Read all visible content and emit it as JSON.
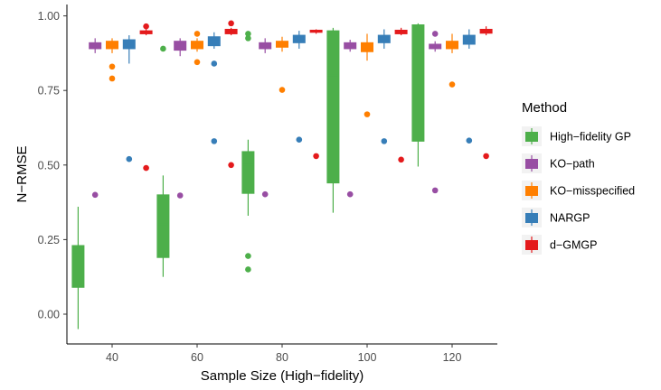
{
  "chart_data": {
    "type": "boxplot",
    "xlabel": "Sample Size (High−fidelity)",
    "ylabel": "N−RMSE",
    "ylim": [
      -0.1,
      1.02
    ],
    "yticks": [
      0,
      0.25,
      0.5,
      0.75,
      1
    ],
    "ytick_labels": [
      "0.00",
      "0.25",
      "0.50",
      "0.75",
      "1.00"
    ],
    "categories": [
      "40",
      "60",
      "80",
      "100",
      "120"
    ],
    "grid": false,
    "legend": {
      "title": "Method",
      "placement": "right"
    },
    "series": [
      {
        "name": "High−fidelity GP",
        "color": "#4DAF4A",
        "boxes": [
          {
            "category": "40",
            "min": -0.05,
            "q1": 0.09,
            "median": 0.2,
            "q3": 0.23,
            "max": 0.36,
            "outliers": []
          },
          {
            "category": "60",
            "min": 0.125,
            "q1": 0.19,
            "median": 0.3,
            "q3": 0.4,
            "max": 0.465,
            "outliers": [
              0.89
            ]
          },
          {
            "category": "80",
            "min": 0.33,
            "q1": 0.405,
            "median": 0.5,
            "q3": 0.545,
            "max": 0.585,
            "outliers": [
              0.195,
              0.15,
              0.925,
              0.94
            ]
          },
          {
            "category": "100",
            "min": 0.34,
            "q1": 0.44,
            "median": 0.8,
            "q3": 0.95,
            "max": 0.96,
            "outliers": []
          },
          {
            "category": "120",
            "min": 0.495,
            "q1": 0.58,
            "median": 0.88,
            "q3": 0.97,
            "max": 0.975,
            "outliers": []
          }
        ]
      },
      {
        "name": "KO−path",
        "color": "#984EA3",
        "boxes": [
          {
            "category": "40",
            "min": 0.875,
            "q1": 0.89,
            "median": 0.895,
            "q3": 0.91,
            "max": 0.925,
            "outliers": [
              0.4
            ]
          },
          {
            "category": "60",
            "min": 0.865,
            "q1": 0.885,
            "median": 0.895,
            "q3": 0.915,
            "max": 0.925,
            "outliers": [
              0.398
            ]
          },
          {
            "category": "80",
            "min": 0.875,
            "q1": 0.89,
            "median": 0.9,
            "q3": 0.91,
            "max": 0.925,
            "outliers": [
              0.402
            ]
          },
          {
            "category": "100",
            "min": 0.88,
            "q1": 0.89,
            "median": 0.895,
            "q3": 0.91,
            "max": 0.92,
            "outliers": [
              0.402
            ]
          },
          {
            "category": "120",
            "min": 0.88,
            "q1": 0.89,
            "median": 0.895,
            "q3": 0.905,
            "max": 0.915,
            "outliers": [
              0.415,
              0.94
            ]
          }
        ]
      },
      {
        "name": "KO−misspecified",
        "color": "#FF7F00",
        "boxes": [
          {
            "category": "40",
            "min": 0.875,
            "q1": 0.89,
            "median": 0.9,
            "q3": 0.915,
            "max": 0.925,
            "outliers": [
              0.83,
              0.79
            ]
          },
          {
            "category": "60",
            "min": 0.88,
            "q1": 0.89,
            "median": 0.9,
            "q3": 0.915,
            "max": 0.925,
            "outliers": [
              0.94,
              0.845
            ]
          },
          {
            "category": "80",
            "min": 0.88,
            "q1": 0.895,
            "median": 0.905,
            "q3": 0.915,
            "max": 0.93,
            "outliers": [
              0.752
            ]
          },
          {
            "category": "100",
            "min": 0.85,
            "q1": 0.88,
            "median": 0.895,
            "q3": 0.91,
            "max": 0.94,
            "outliers": [
              0.67
            ]
          },
          {
            "category": "120",
            "min": 0.875,
            "q1": 0.89,
            "median": 0.9,
            "q3": 0.915,
            "max": 0.94,
            "outliers": [
              0.77
            ]
          }
        ]
      },
      {
        "name": "NARGP",
        "color": "#377EB8",
        "boxes": [
          {
            "category": "40",
            "min": 0.84,
            "q1": 0.89,
            "median": 0.895,
            "q3": 0.92,
            "max": 0.935,
            "outliers": [
              0.52
            ]
          },
          {
            "category": "60",
            "min": 0.89,
            "q1": 0.9,
            "median": 0.915,
            "q3": 0.93,
            "max": 0.945,
            "outliers": [
              0.58,
              0.84
            ]
          },
          {
            "category": "80",
            "min": 0.89,
            "q1": 0.91,
            "median": 0.925,
            "q3": 0.935,
            "max": 0.95,
            "outliers": [
              0.585
            ]
          },
          {
            "category": "100",
            "min": 0.89,
            "q1": 0.91,
            "median": 0.925,
            "q3": 0.935,
            "max": 0.955,
            "outliers": [
              0.58
            ]
          },
          {
            "category": "120",
            "min": 0.89,
            "q1": 0.905,
            "median": 0.92,
            "q3": 0.935,
            "max": 0.955,
            "outliers": [
              0.582
            ]
          }
        ]
      },
      {
        "name": "d−GMGP",
        "color": "#E41A1C",
        "boxes": [
          {
            "category": "40",
            "min": 0.935,
            "q1": 0.94,
            "median": 0.945,
            "q3": 0.95,
            "max": 0.955,
            "outliers": [
              0.965,
              0.49
            ]
          },
          {
            "category": "60",
            "min": 0.935,
            "q1": 0.94,
            "median": 0.945,
            "q3": 0.955,
            "max": 0.96,
            "outliers": [
              0.975,
              0.5
            ]
          },
          {
            "category": "80",
            "min": 0.94,
            "q1": 0.945,
            "median": 0.948,
            "q3": 0.952,
            "max": 0.955,
            "outliers": [
              0.53
            ]
          },
          {
            "category": "100",
            "min": 0.935,
            "q1": 0.94,
            "median": 0.947,
            "q3": 0.952,
            "max": 0.96,
            "outliers": [
              0.518
            ]
          },
          {
            "category": "120",
            "min": 0.935,
            "q1": 0.942,
            "median": 0.948,
            "q3": 0.955,
            "max": 0.965,
            "outliers": [
              0.53
            ]
          }
        ]
      }
    ]
  }
}
